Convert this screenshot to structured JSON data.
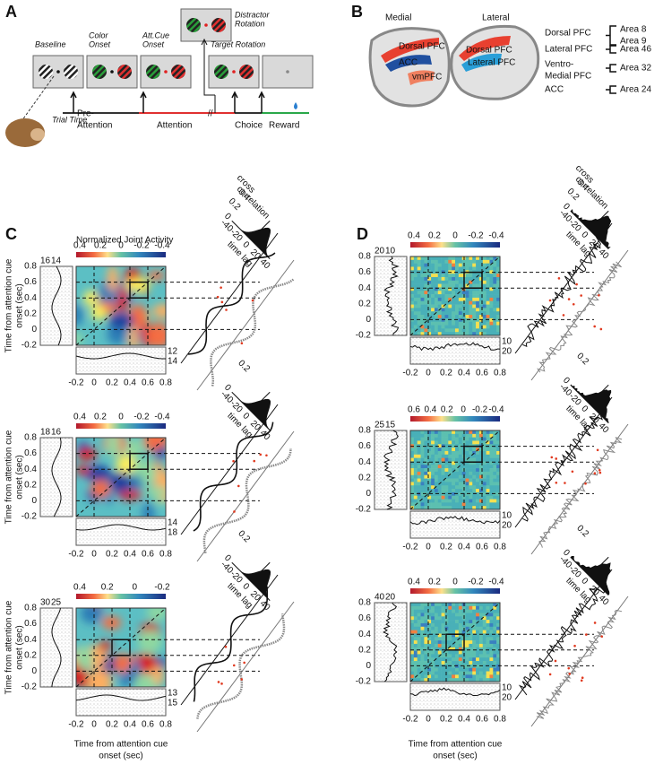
{
  "panel_a": {
    "label": "A",
    "screens": [
      [
        "Baseline"
      ],
      [
        "Color",
        "Onset"
      ],
      [
        "Att.Cue",
        "Onset"
      ],
      [
        "Distractor",
        "Rotation"
      ],
      [
        "Target Rotation"
      ]
    ],
    "axis": "Trial Time",
    "phases": [
      [
        "Pre-",
        "Attention"
      ],
      [
        "Attention"
      ],
      [
        "Choice"
      ],
      [
        "Reward"
      ]
    ]
  },
  "panel_b": {
    "label": "B",
    "views": [
      "Medial",
      "Lateral"
    ],
    "medial_regions": [
      "Dorsal PFC",
      "ACC",
      "vmPFC"
    ],
    "lateral_regions": [
      "Dorsal PFC",
      "Lateral PFC"
    ],
    "legend": [
      {
        "name": [
          "Dorsal PFC"
        ],
        "areas": [
          "Area 8",
          "Area 9"
        ]
      },
      {
        "name": [
          "Lateral PFC"
        ],
        "areas": [
          "Area 46"
        ]
      },
      {
        "name": [
          "Ventro-",
          "Medial PFC"
        ],
        "areas": [
          "Area 32"
        ]
      },
      {
        "name": [
          "ACC"
        ],
        "areas": [
          "Area 24"
        ]
      }
    ]
  },
  "panel_c": {
    "label": "C",
    "colorbar_title": "Normalized Joint Activity",
    "y_label": [
      "Time from attention cue",
      "onset (sec)"
    ],
    "x_label": [
      "Time from attention cue",
      "onset (sec)"
    ],
    "yticks": [
      "0.8",
      "0.6",
      "0.4",
      "0.2",
      "0",
      "-0.2"
    ],
    "xticks": [
      "-0.2",
      "0",
      "0.2",
      "0.4",
      "0.6",
      "0.8"
    ],
    "xcorr_label": [
      "cross",
      "correlation"
    ],
    "xcorr_xticks": [
      "-40",
      "-20",
      "0",
      "20",
      "40"
    ],
    "time_lag": "time lag",
    "rows": [
      {
        "colorbar_ticks": [
          "0.4",
          "0.2",
          "0",
          "-0.2",
          "-0.4"
        ],
        "left_counts": [
          "16",
          "14"
        ],
        "right_counts": [
          "12",
          "14"
        ],
        "xcorr_yticks": [
          "0.4",
          "0.2",
          "0"
        ]
      },
      {
        "colorbar_ticks": [
          "0.4",
          "0.2",
          "0",
          "-0.2",
          "-0.4"
        ],
        "left_counts": [
          "18",
          "16"
        ],
        "right_counts": [
          "14",
          "18"
        ],
        "xcorr_yticks": [
          "0.2",
          "0"
        ]
      },
      {
        "colorbar_ticks": [
          "0.4",
          "0.2",
          "0",
          "-0.2"
        ],
        "left_counts": [
          "30",
          "25"
        ],
        "right_counts": [
          "13",
          "15"
        ],
        "xcorr_yticks": [
          "0.2",
          "0"
        ]
      }
    ]
  },
  "panel_d": {
    "label": "D",
    "x_label": [
      "Time from attention cue",
      "onset (sec)"
    ],
    "yticks": [
      "0.8",
      "0.6",
      "0.4",
      "0.2",
      "0",
      "-0.2"
    ],
    "xticks": [
      "-0.2",
      "0",
      "0.2",
      "0.4",
      "0.6",
      "0.8"
    ],
    "xcorr_label": [
      "cross",
      "correlation"
    ],
    "xcorr_xticks": [
      "-40",
      "-20",
      "0",
      "20",
      "40"
    ],
    "time_lag": "time lag",
    "rows": [
      {
        "colorbar_ticks": [
          "0.4",
          "0.2",
          "0",
          "-0.2",
          "-0.4"
        ],
        "left_counts": [
          "20",
          "10"
        ],
        "right_counts": [
          "10",
          "20"
        ],
        "xcorr_yticks": [
          "0.4",
          "0.2",
          "0"
        ]
      },
      {
        "colorbar_ticks": [
          "0.6",
          "0.4",
          "0.2",
          "0",
          "-0.2",
          "-0.4"
        ],
        "left_counts": [
          "25",
          "15"
        ],
        "right_counts": [
          "10",
          "20"
        ],
        "xcorr_yticks": [
          "0.2",
          "0"
        ]
      },
      {
        "colorbar_ticks": [
          "0.4",
          "0.2",
          "0",
          "-0.2",
          "-0.4"
        ],
        "left_counts": [
          "40",
          "20"
        ],
        "right_counts": [
          "10",
          "20"
        ],
        "xcorr_yticks": [
          "0.2",
          "0"
        ]
      }
    ]
  }
}
